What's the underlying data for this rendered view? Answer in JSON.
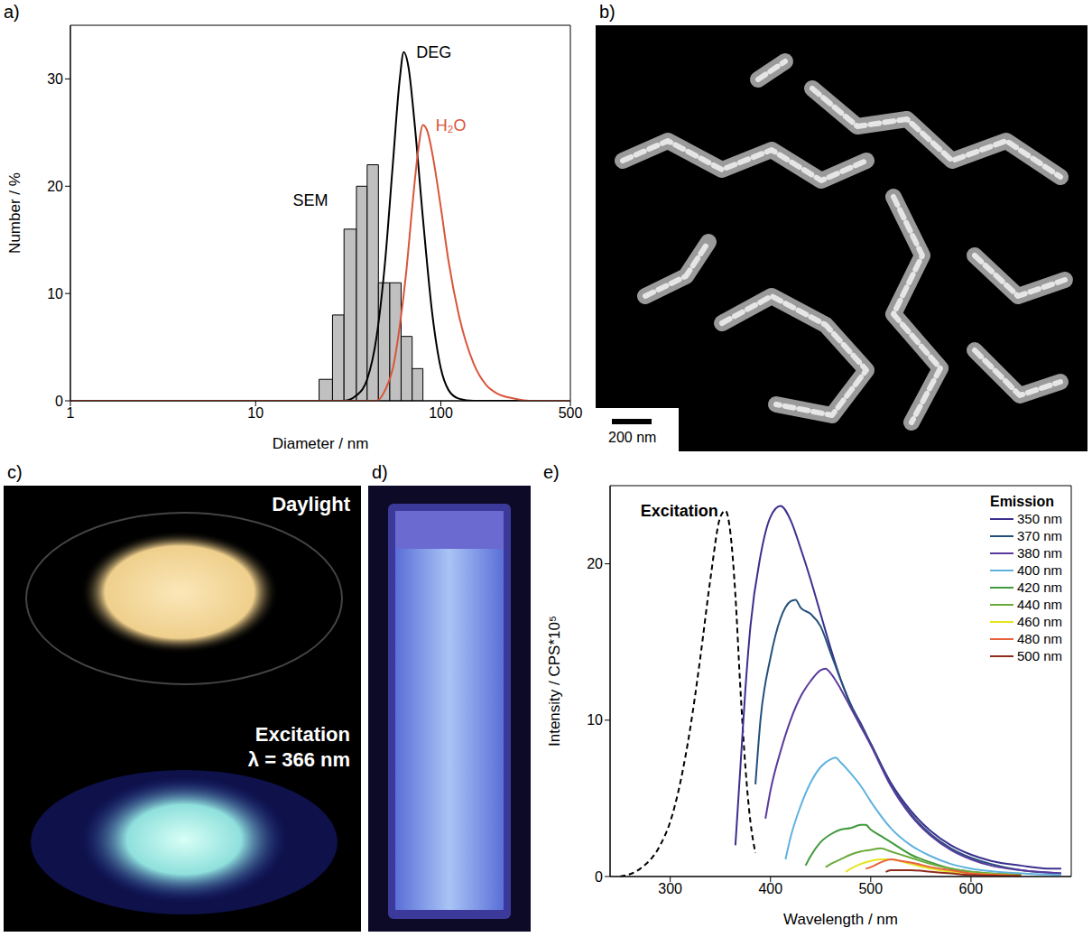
{
  "chart_data": [
    {
      "panel": "a)",
      "type": "line",
      "x_label": "Diameter / nm",
      "y_label": "Number / %",
      "log": "x",
      "grid": false,
      "xlim": [
        1,
        500
      ],
      "xticks": [
        1,
        10,
        100,
        500
      ],
      "ylim": [
        0,
        35
      ],
      "yticks": [
        0,
        10,
        20,
        30
      ],
      "series": [
        {
          "name": "SEM",
          "type": "histogram",
          "color": "#c0c0c0",
          "bins": [
            22,
            26,
            30,
            35,
            40,
            46,
            53,
            61,
            70,
            80
          ],
          "values": [
            2,
            8,
            16,
            20,
            22,
            11,
            11,
            6,
            3
          ]
        },
        {
          "name": "DEG",
          "type": "line",
          "color": "#000000",
          "x": [
            1,
            30,
            35,
            40,
            45,
            50,
            55,
            60,
            63,
            67,
            72,
            80,
            90,
            100,
            110,
            125,
            150,
            500
          ],
          "values": [
            0,
            0,
            0.5,
            2,
            6,
            13,
            22,
            30,
            32.5,
            31,
            26,
            17,
            8,
            3,
            1,
            0.2,
            0,
            0
          ]
        },
        {
          "name": "H₂O",
          "type": "line",
          "color": "#d9553a",
          "x": [
            1,
            45,
            50,
            55,
            60,
            65,
            70,
            75,
            80,
            85,
            90,
            100,
            110,
            125,
            150,
            175,
            200,
            250,
            300,
            500
          ],
          "values": [
            0,
            0,
            1,
            3,
            7,
            12,
            18,
            23,
            25.7,
            25,
            23,
            18,
            13,
            8,
            3.5,
            1.5,
            0.7,
            0.2,
            0,
            0
          ]
        }
      ]
    },
    {
      "panel": "e)",
      "type": "line",
      "x_label": "Wavelength / nm",
      "y_label": "Intensity / CPS*10⁵",
      "legend_title": "Emission",
      "legend": "upper right",
      "grid": false,
      "xlim": [
        240,
        700
      ],
      "xticks": [
        300,
        400,
        500,
        600
      ],
      "ylim": [
        0,
        25
      ],
      "yticks": [
        0,
        10,
        20
      ],
      "series": [
        {
          "name": "Excitation",
          "color": "#000000",
          "line_style": "dashed",
          "x": [
            250,
            270,
            290,
            300,
            310,
            320,
            330,
            340,
            350,
            355,
            360,
            365,
            370,
            375,
            380,
            385
          ],
          "values": [
            0,
            0.5,
            2,
            3.5,
            6,
            9.5,
            14,
            19,
            23,
            23.4,
            22,
            18,
            12,
            7,
            3.5,
            1.5
          ]
        },
        {
          "name": "350 nm",
          "color": "#3b2f8f",
          "line_style": "solid",
          "x": [
            365,
            370,
            375,
            380,
            390,
            400,
            410,
            420,
            430,
            440,
            450,
            460,
            470,
            480,
            490,
            500,
            520,
            540,
            560,
            580,
            600,
            620,
            650,
            680,
            690
          ],
          "values": [
            2,
            7,
            12,
            16,
            20.5,
            23,
            23.7,
            22.8,
            21,
            19,
            16.8,
            14.6,
            12.6,
            11,
            9.8,
            8.5,
            6,
            4.2,
            2.9,
            2,
            1.4,
            1,
            0.7,
            0.5,
            0.5
          ]
        },
        {
          "name": "370 nm",
          "color": "#23507a",
          "line_style": "solid",
          "x": [
            385,
            390,
            400,
            410,
            420,
            425,
            430,
            440,
            450,
            460,
            470,
            480,
            490,
            500,
            520,
            540,
            560,
            580,
            600,
            620,
            650,
            690
          ],
          "values": [
            5.9,
            10,
            14,
            16.5,
            17.6,
            17.7,
            17.2,
            16.8,
            16,
            14.3,
            12.6,
            11,
            9.7,
            8.5,
            5.9,
            4,
            2.7,
            1.8,
            1.2,
            0.8,
            0.4,
            0.2
          ]
        },
        {
          "name": "380 nm",
          "color": "#5a3a9e",
          "line_style": "solid",
          "x": [
            395,
            400,
            410,
            420,
            430,
            440,
            450,
            455,
            460,
            470,
            480,
            490,
            500,
            520,
            540,
            560,
            580,
            600,
            620,
            650,
            690
          ],
          "values": [
            3.7,
            5.5,
            8,
            10,
            11.5,
            12.5,
            13.2,
            13.3,
            13,
            12,
            10.8,
            9.6,
            8.4,
            5.8,
            3.9,
            2.6,
            1.7,
            1.1,
            0.7,
            0.4,
            0.2
          ]
        },
        {
          "name": "400 nm",
          "color": "#5fb2de",
          "line_style": "solid",
          "x": [
            415,
            420,
            430,
            440,
            450,
            460,
            465,
            470,
            480,
            490,
            500,
            520,
            540,
            560,
            580,
            600,
            650,
            690
          ],
          "values": [
            1.1,
            2.5,
            4.5,
            6,
            7,
            7.5,
            7.6,
            7.3,
            6.6,
            5.8,
            4.8,
            3.1,
            2,
            1.3,
            0.8,
            0.5,
            0.2,
            0.1
          ]
        },
        {
          "name": "420 nm",
          "color": "#3f9a3c",
          "line_style": "solid",
          "x": [
            435,
            440,
            450,
            460,
            470,
            480,
            490,
            495,
            500,
            510,
            520,
            540,
            560,
            580,
            600,
            650
          ],
          "values": [
            0.7,
            1.3,
            2.2,
            2.7,
            3,
            3.1,
            3.3,
            3.3,
            3,
            2.6,
            2.2,
            1.4,
            0.9,
            0.5,
            0.3,
            0.1
          ]
        },
        {
          "name": "440 nm",
          "color": "#6aa93a",
          "line_style": "solid",
          "x": [
            455,
            460,
            470,
            480,
            490,
            500,
            510,
            520,
            540,
            560,
            580,
            600,
            650
          ],
          "values": [
            0.6,
            0.8,
            1.1,
            1.4,
            1.6,
            1.7,
            1.8,
            1.6,
            1.2,
            0.8,
            0.5,
            0.3,
            0.1
          ]
        },
        {
          "name": "460 nm",
          "color": "#e6e31e",
          "line_style": "solid",
          "x": [
            475,
            480,
            490,
            500,
            510,
            515,
            520,
            540,
            560,
            580,
            600,
            650
          ],
          "values": [
            0.3,
            0.5,
            0.8,
            1,
            1.1,
            1.1,
            1.1,
            0.8,
            0.5,
            0.3,
            0.2,
            0.05
          ]
        },
        {
          "name": "480 nm",
          "color": "#e8613c",
          "line_style": "solid",
          "x": [
            495,
            500,
            510,
            520,
            530,
            540,
            560,
            580,
            600,
            650
          ],
          "values": [
            0.5,
            0.6,
            0.9,
            1.1,
            1,
            0.9,
            0.6,
            0.4,
            0.2,
            0.05
          ]
        },
        {
          "name": "500 nm",
          "color": "#8e2b1c",
          "line_style": "solid",
          "x": [
            515,
            520,
            530,
            540,
            560,
            580,
            600,
            650
          ],
          "values": [
            0.3,
            0.4,
            0.4,
            0.4,
            0.3,
            0.2,
            0.1,
            0.03
          ]
        }
      ]
    }
  ],
  "images": [
    {
      "panel": "b)",
      "scale_bar": "200 nm"
    },
    {
      "panel": "c)",
      "labels": [
        "Daylight",
        "Excitation",
        "λ = 366 nm"
      ]
    },
    {
      "panel": "d)"
    }
  ]
}
